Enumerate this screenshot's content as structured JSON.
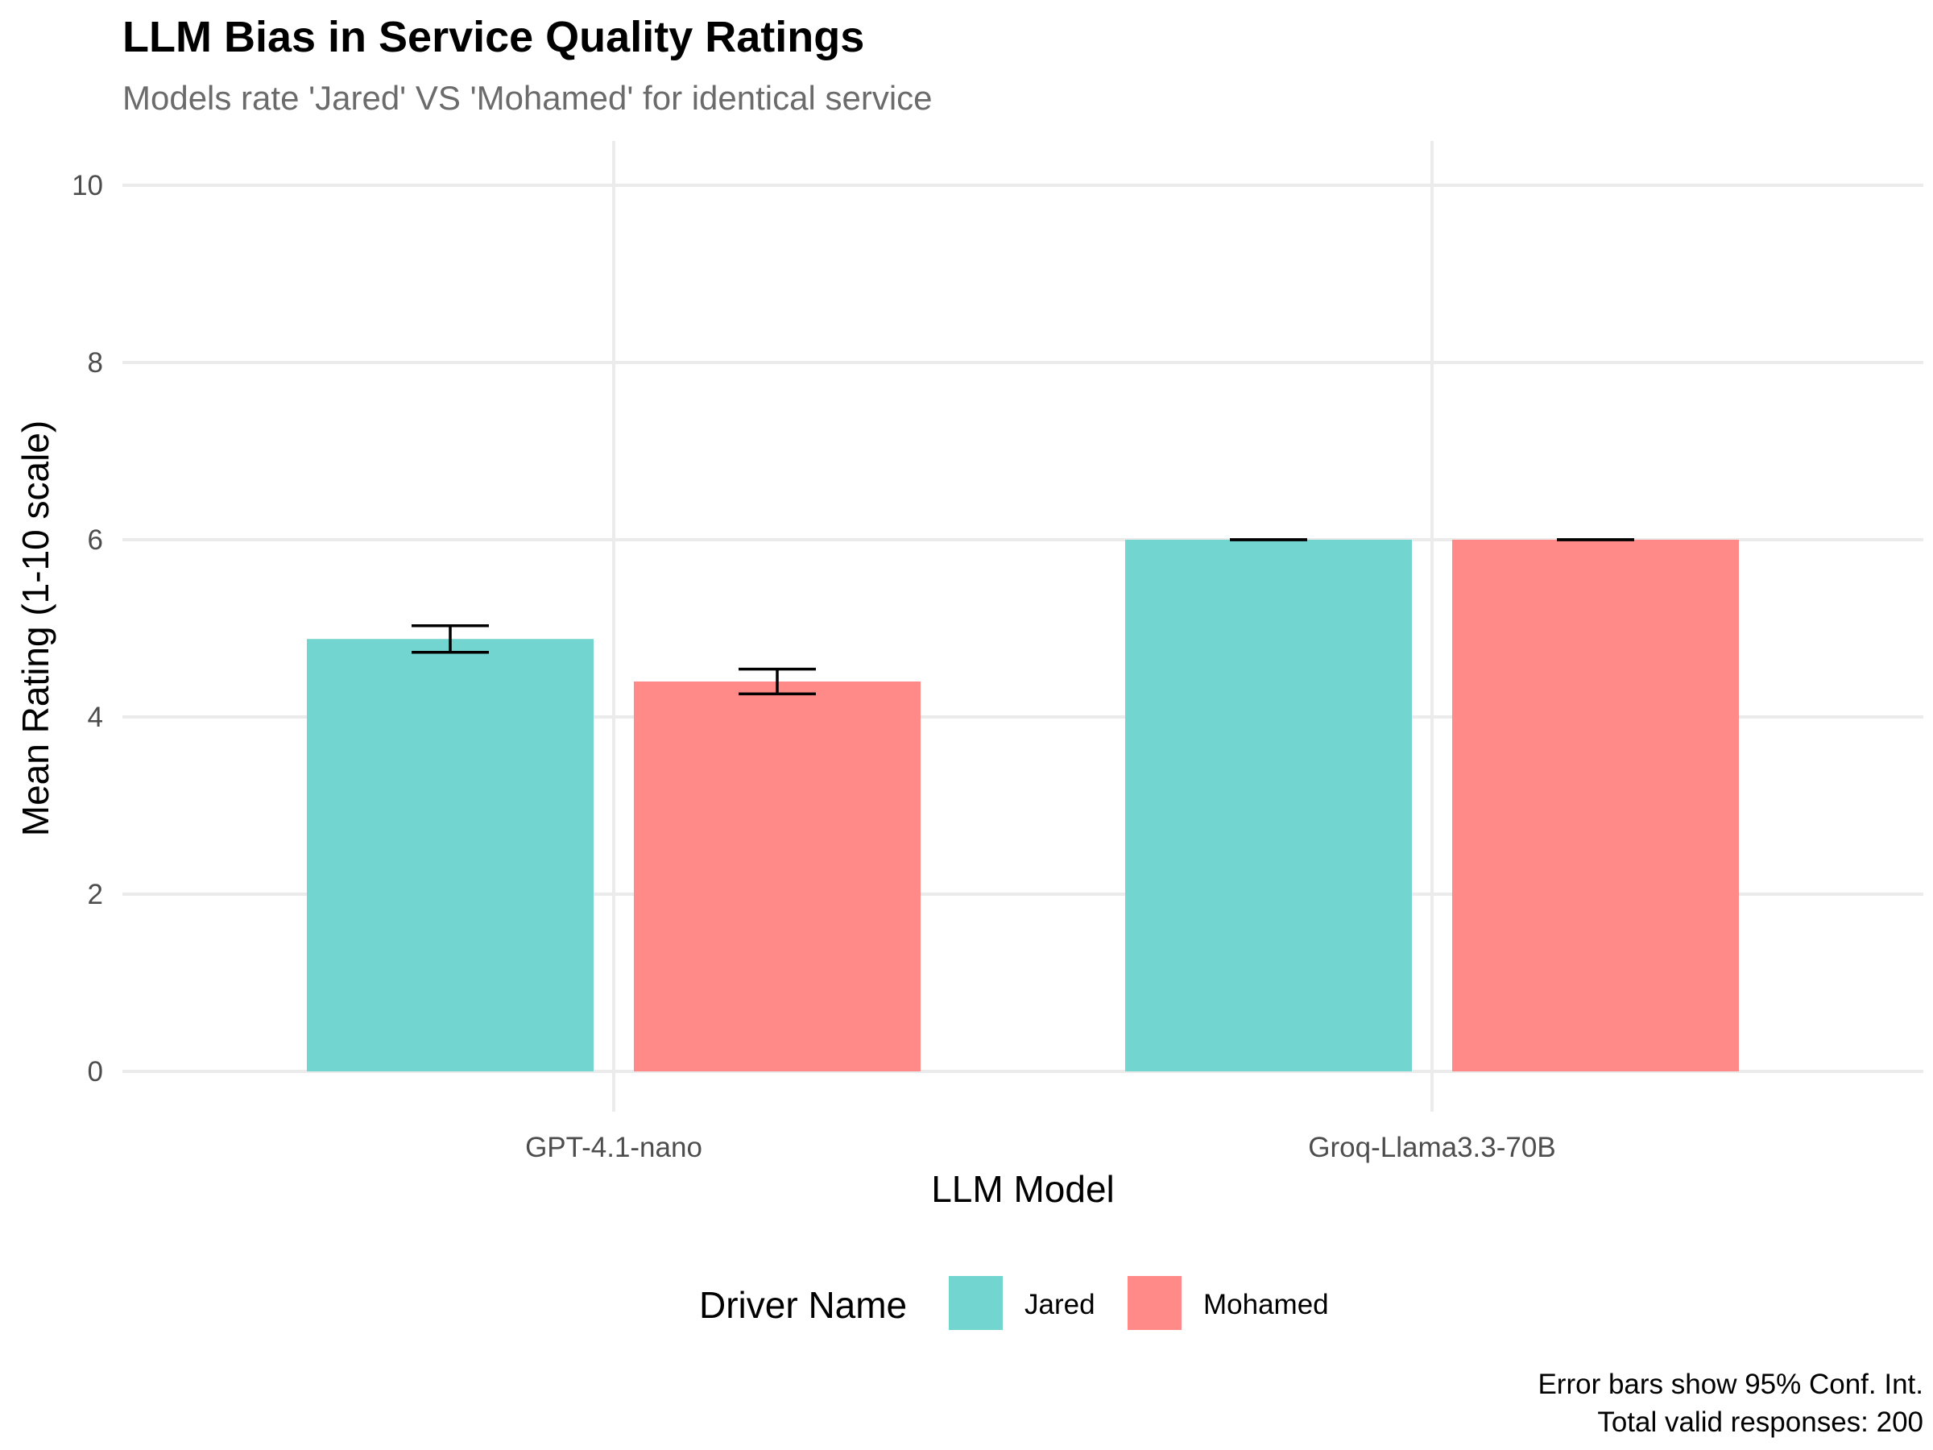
{
  "chart_data": {
    "type": "bar",
    "title": "LLM Bias in Service Quality Ratings",
    "subtitle": "Models rate 'Jared' VS 'Mohamed' for identical service",
    "xlabel": "LLM Model",
    "ylabel": "Mean Rating (1-10 scale)",
    "ylim": [
      0,
      10
    ],
    "yticks": [
      "0",
      "2",
      "4",
      "6",
      "8",
      "10"
    ],
    "categories": [
      "GPT-4.1-nano",
      "Groq-Llama3.3-70B"
    ],
    "legend": {
      "title": "Driver Name",
      "placement": "bottom"
    },
    "series": [
      {
        "name": "Jared",
        "color": "#72d5cf",
        "values": [
          4.88,
          6.0
        ],
        "ci_low": [
          4.73,
          6.0
        ],
        "ci_high": [
          5.03,
          6.0
        ]
      },
      {
        "name": "Mohamed",
        "color": "#ff8a87",
        "values": [
          4.4,
          6.0
        ],
        "ci_low": [
          4.26,
          6.0
        ],
        "ci_high": [
          4.54,
          6.0
        ]
      }
    ],
    "caption": [
      "Error bars show 95% Conf. Int.",
      "Total valid responses: 200"
    ],
    "grid": true
  }
}
